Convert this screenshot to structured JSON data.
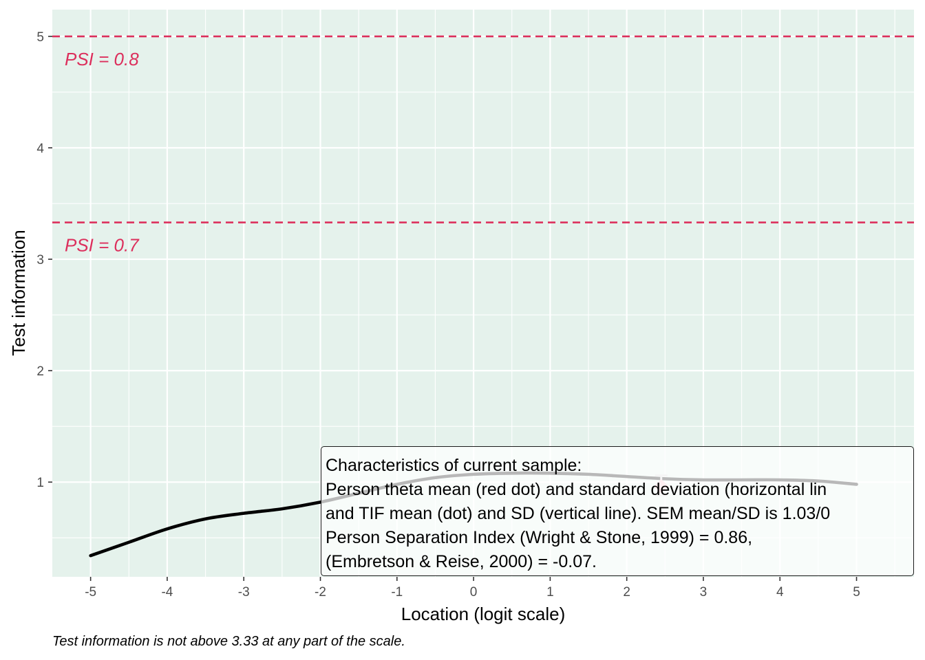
{
  "chart_data": {
    "type": "line",
    "xlabel": "Location (logit scale)",
    "ylabel": "Test information",
    "xlim": [
      -5.5,
      5.75
    ],
    "ylim": [
      0.15,
      5.24
    ],
    "x_ticks": [
      -5,
      -4,
      -3,
      -2,
      -1,
      0,
      1,
      2,
      3,
      4,
      5
    ],
    "y_ticks": [
      1,
      2,
      3,
      4,
      5
    ],
    "grid": true,
    "background_color": "#e5f2ec",
    "curve_color": "#000000",
    "curve_x": [
      -5,
      -4.5,
      -4,
      -3.5,
      -3,
      -2.5,
      -2,
      -1.5,
      -1,
      -0.5,
      0,
      0.5,
      1,
      1.5,
      2,
      2.5,
      3,
      3.5,
      4,
      4.5,
      5
    ],
    "curve_y": [
      0.34,
      0.46,
      0.58,
      0.67,
      0.72,
      0.76,
      0.82,
      0.9,
      0.98,
      1.04,
      1.07,
      1.08,
      1.08,
      1.07,
      1.05,
      1.03,
      1.02,
      1.02,
      1.02,
      1.01,
      0.98
    ],
    "reference_lines": [
      {
        "y": 5.0,
        "label": "PSI = 0.8",
        "color": "#dc2f5c"
      },
      {
        "y": 3.33,
        "label": "PSI = 0.7",
        "color": "#dc2f5c"
      }
    ],
    "tif_mean_point": {
      "x": 2.45,
      "y": 0.96,
      "sd_low": 0.88,
      "sd_high": 1.06,
      "color": "#ffc0cb",
      "errorbar_color": "#d9d9d9"
    },
    "caption": "Test information is not above 3.33 at any part of the scale.",
    "annotation_box": {
      "lines": [
        "Characteristics of current sample:",
        "Person theta mean (red dot) and standard deviation (horizontal lin",
        "and TIF mean (dot) and SD (vertical line). SEM mean/SD is 1.03/0",
        "Person Separation Index (Wright & Stone, 1999) = 0.86,",
        "(Embretson & Reise, 2000) = -0.07."
      ]
    }
  }
}
